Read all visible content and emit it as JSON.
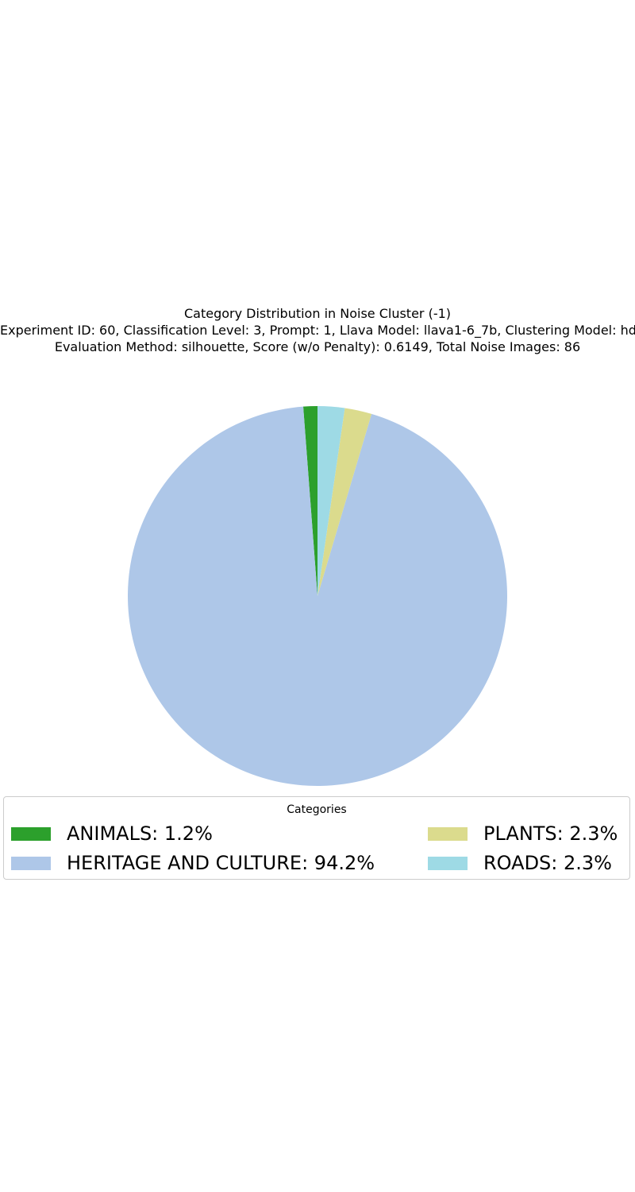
{
  "chart_data": {
    "type": "pie",
    "title": "Category Distribution in Noise Cluster (-1)",
    "subtitle_lines": [
      "Experiment ID: 60, Classification Level: 3, Prompt: 1, Llava Model: llava1-6_7b, Clustering Model: hdbscan",
      "Evaluation Method: silhouette, Score (w/o Penalty): 0.6149, Total Noise Images: 86"
    ],
    "legend_title": "Categories",
    "legend_placement": "lower-center",
    "start_angle_deg": 90,
    "direction": "counterclockwise",
    "slices": [
      {
        "label": "ANIMALS",
        "value": 1.2,
        "legend_text": "ANIMALS: 1.2%",
        "color": "#2ca02c"
      },
      {
        "label": "HERITAGE AND CULTURE",
        "value": 94.2,
        "legend_text": "HERITAGE AND CULTURE: 94.2%",
        "color": "#aec7e8"
      },
      {
        "label": "PLANTS",
        "value": 2.3,
        "legend_text": "PLANTS: 2.3%",
        "color": "#dbdb8d"
      },
      {
        "label": "ROADS",
        "value": 2.3,
        "legend_text": "ROADS: 2.3%",
        "color": "#9edae5"
      }
    ]
  }
}
